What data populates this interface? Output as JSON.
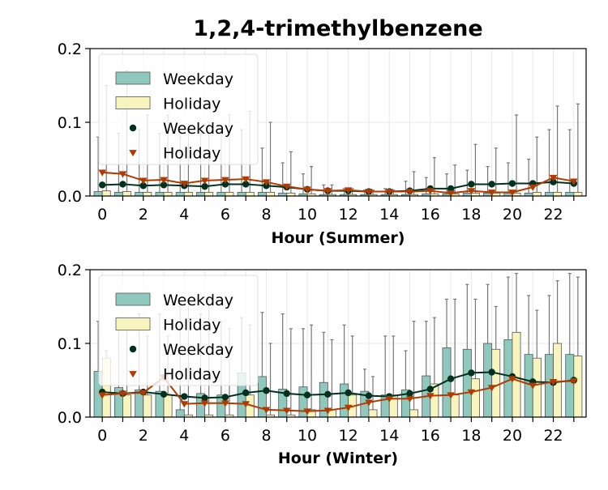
{
  "title": "1,2,4-trimethylbenzene",
  "colors": {
    "weekday_box": "#8fc8bd",
    "holiday_box": "#f7f4bd",
    "weekday_line": "#00311e",
    "holiday_line": "#b03a00",
    "whisker": "#777777",
    "grid": "#e8e8e8"
  },
  "chart_data": [
    {
      "type": "box",
      "xlabel": "Hour (Summer)",
      "ylabel": "",
      "ylim": [
        0,
        0.2
      ],
      "yticks": [
        "0.0",
        "0.1",
        "0.2"
      ],
      "xlim": [
        -0.6,
        23.6
      ],
      "xticks": [
        "0",
        "2",
        "4",
        "6",
        "8",
        "10",
        "12",
        "14",
        "16",
        "18",
        "20",
        "22"
      ],
      "hours": [
        0,
        1,
        2,
        3,
        4,
        5,
        6,
        7,
        8,
        9,
        10,
        11,
        12,
        13,
        14,
        15,
        16,
        17,
        18,
        19,
        20,
        21,
        22,
        23
      ],
      "legend": {
        "placement": "top-left",
        "entries": [
          {
            "label": "Weekday",
            "kind": "box",
            "series": "weekday"
          },
          {
            "label": "Holiday",
            "kind": "box",
            "series": "holiday"
          },
          {
            "label": "Weekday",
            "kind": "circle",
            "series": "weekday"
          },
          {
            "label": "Holiday",
            "kind": "triangle",
            "series": "holiday"
          }
        ]
      },
      "box_series": [
        {
          "series": "weekday",
          "q3": [
            0.006,
            0.005,
            0.005,
            0.005,
            0.005,
            0.005,
            0.005,
            0.005,
            0.005,
            0.004,
            0.003,
            0.002,
            0.002,
            0.002,
            0.002,
            0.002,
            0.003,
            0.003,
            0.004,
            0.004,
            0.004,
            0.004,
            0.005,
            0.005
          ],
          "whisker": [
            0.08,
            0.085,
            0.09,
            0.085,
            0.08,
            0.085,
            0.085,
            0.09,
            0.065,
            0.045,
            0.03,
            0.015,
            0.01,
            0.008,
            0.01,
            0.02,
            0.025,
            0.03,
            0.035,
            0.04,
            0.045,
            0.05,
            0.09,
            0.09
          ]
        },
        {
          "series": "holiday",
          "q3": [
            0.007,
            0.006,
            0.005,
            0.005,
            0.005,
            0.005,
            0.005,
            0.005,
            0.005,
            0.004,
            0.003,
            0.002,
            0.002,
            0.002,
            0.002,
            0.002,
            0.003,
            0.003,
            0.004,
            0.004,
            0.004,
            0.005,
            0.005,
            0.005
          ],
          "whisker": [
            0.15,
            0.17,
            0.11,
            0.11,
            0.09,
            0.1,
            0.11,
            0.115,
            0.1,
            0.06,
            0.04,
            0.015,
            0.01,
            0.008,
            0.008,
            0.033,
            0.052,
            0.042,
            0.07,
            0.065,
            0.11,
            0.08,
            0.122,
            0.125
          ]
        }
      ],
      "line_series": [
        {
          "series": "weekday",
          "marker": "circle",
          "values": [
            0.015,
            0.016,
            0.014,
            0.015,
            0.014,
            0.013,
            0.016,
            0.016,
            0.014,
            0.012,
            0.009,
            0.007,
            0.007,
            0.006,
            0.006,
            0.007,
            0.01,
            0.01,
            0.016,
            0.016,
            0.017,
            0.017,
            0.019,
            0.017
          ]
        },
        {
          "series": "holiday",
          "marker": "triangle",
          "values": [
            0.032,
            0.03,
            0.021,
            0.022,
            0.017,
            0.021,
            0.022,
            0.023,
            0.019,
            0.013,
            0.009,
            0.007,
            0.008,
            0.006,
            0.006,
            0.006,
            0.007,
            0.004,
            0.007,
            0.005,
            0.005,
            0.012,
            0.025,
            0.02
          ]
        }
      ]
    },
    {
      "type": "box",
      "xlabel": "Hour (Winter)",
      "ylabel": "",
      "ylim": [
        0,
        0.2
      ],
      "yticks": [
        "0.0",
        "0.1",
        "0.2"
      ],
      "xlim": [
        -0.6,
        23.6
      ],
      "xticks": [
        "0",
        "2",
        "4",
        "6",
        "8",
        "10",
        "12",
        "14",
        "16",
        "18",
        "20",
        "22"
      ],
      "hours": [
        0,
        1,
        2,
        3,
        4,
        5,
        6,
        7,
        8,
        9,
        10,
        11,
        12,
        13,
        14,
        15,
        16,
        17,
        18,
        19,
        20,
        21,
        22,
        23
      ],
      "legend": {
        "placement": "top-left",
        "entries": [
          {
            "label": "Weekday",
            "kind": "box",
            "series": "weekday"
          },
          {
            "label": "Holiday",
            "kind": "box",
            "series": "holiday"
          },
          {
            "label": "Weekday",
            "kind": "circle",
            "series": "weekday"
          },
          {
            "label": "Holiday",
            "kind": "triangle",
            "series": "holiday"
          }
        ]
      },
      "box_series": [
        {
          "series": "weekday",
          "q3": [
            0.062,
            0.04,
            0.037,
            0.035,
            0.01,
            0.032,
            0.03,
            0.06,
            0.055,
            0.038,
            0.041,
            0.047,
            0.045,
            0.035,
            0.03,
            0.037,
            0.056,
            0.094,
            0.092,
            0.1,
            0.105,
            0.085,
            0.085,
            0.085
          ],
          "whisker": [
            0.13,
            0.135,
            0.14,
            0.14,
            0.15,
            0.14,
            0.13,
            0.135,
            0.142,
            0.14,
            0.12,
            0.115,
            0.125,
            0.065,
            0.11,
            0.09,
            0.13,
            0.16,
            0.18,
            0.18,
            0.19,
            0.165,
            0.165,
            0.195
          ]
        },
        {
          "series": "holiday",
          "q3": [
            0.08,
            0.03,
            0.03,
            0.03,
            0.003,
            0.003,
            0.003,
            0.03,
            0.003,
            0.003,
            0.01,
            0.01,
            0.03,
            0.01,
            0.03,
            0.01,
            0.045,
            0.03,
            0.052,
            0.092,
            0.115,
            0.08,
            0.1,
            0.083
          ],
          "whisker": [
            0.09,
            0.12,
            0.11,
            0.11,
            0.16,
            0.16,
            0.12,
            0.125,
            0.1,
            0.12,
            0.125,
            0.105,
            0.11,
            0.055,
            0.11,
            0.13,
            0.135,
            0.16,
            0.16,
            0.15,
            0.195,
            0.145,
            0.185,
            0.19
          ]
        }
      ],
      "line_series": [
        {
          "series": "weekday",
          "marker": "circle",
          "values": [
            0.034,
            0.032,
            0.034,
            0.031,
            0.028,
            0.026,
            0.027,
            0.033,
            0.036,
            0.032,
            0.03,
            0.031,
            0.033,
            0.029,
            0.028,
            0.032,
            0.038,
            0.052,
            0.06,
            0.061,
            0.055,
            0.048,
            0.047,
            0.05
          ]
        },
        {
          "series": "holiday",
          "marker": "triangle",
          "values": [
            0.03,
            0.032,
            0.033,
            0.054,
            0.018,
            0.019,
            0.019,
            0.018,
            0.01,
            0.009,
            0.008,
            0.009,
            0.013,
            0.02,
            0.025,
            0.025,
            0.029,
            0.03,
            0.034,
            0.04,
            0.052,
            0.043,
            0.048,
            0.049
          ]
        }
      ]
    }
  ]
}
